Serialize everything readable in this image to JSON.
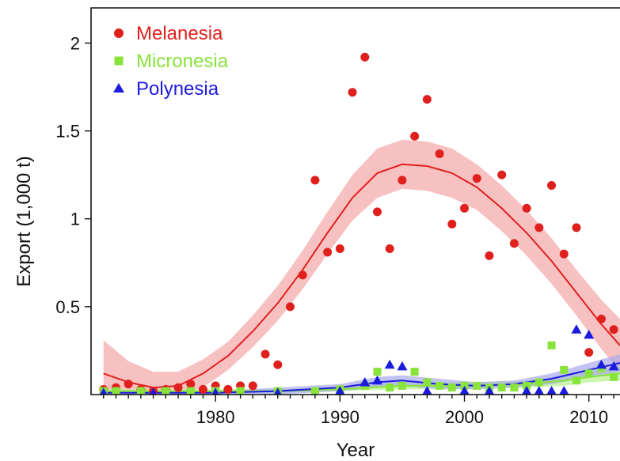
{
  "chart_data": {
    "type": "scatter",
    "title": "",
    "xlabel": "Year",
    "ylabel": "Export (1,000 t)",
    "xlim": [
      1970,
      2012.5
    ],
    "ylim": [
      0,
      2.2
    ],
    "x_ticks": [
      "1980",
      "1990",
      "2000",
      "2010"
    ],
    "y_ticks": [
      "0.5",
      "1",
      "1.5",
      "2"
    ],
    "grid": false,
    "legend_position": "top-left",
    "series": [
      {
        "name": "Melanesia",
        "marker": "circle",
        "color": "#e0201c",
        "band_color": "#f4a6a8",
        "points": [
          [
            1971,
            0.03
          ],
          [
            1972,
            0.04
          ],
          [
            1973,
            0.06
          ],
          [
            1974,
            0.03
          ],
          [
            1975,
            0.02
          ],
          [
            1976,
            0.03
          ],
          [
            1977,
            0.04
          ],
          [
            1978,
            0.06
          ],
          [
            1979,
            0.03
          ],
          [
            1980,
            0.05
          ],
          [
            1981,
            0.03
          ],
          [
            1982,
            0.05
          ],
          [
            1983,
            0.05
          ],
          [
            1984,
            0.23
          ],
          [
            1985,
            0.17
          ],
          [
            1986,
            0.5
          ],
          [
            1987,
            0.68
          ],
          [
            1988,
            1.22
          ],
          [
            1989,
            0.81
          ],
          [
            1990,
            0.83
          ],
          [
            1991,
            1.72
          ],
          [
            1992,
            1.92
          ],
          [
            1993,
            1.04
          ],
          [
            1994,
            0.83
          ],
          [
            1995,
            1.22
          ],
          [
            1996,
            1.47
          ],
          [
            1997,
            1.68
          ],
          [
            1998,
            1.37
          ],
          [
            1999,
            0.97
          ],
          [
            2000,
            1.06
          ],
          [
            2001,
            1.23
          ],
          [
            2002,
            0.79
          ],
          [
            2003,
            1.25
          ],
          [
            2004,
            0.86
          ],
          [
            2005,
            1.06
          ],
          [
            2006,
            0.95
          ],
          [
            2007,
            1.19
          ],
          [
            2008,
            0.8
          ],
          [
            2009,
            0.95
          ],
          [
            2010,
            0.24
          ],
          [
            2011,
            0.43
          ],
          [
            2012,
            0.37
          ]
        ],
        "fit": [
          [
            1971,
            0.12
          ],
          [
            1973,
            0.07
          ],
          [
            1975,
            0.04
          ],
          [
            1977,
            0.05
          ],
          [
            1979,
            0.12
          ],
          [
            1981,
            0.22
          ],
          [
            1983,
            0.36
          ],
          [
            1985,
            0.52
          ],
          [
            1987,
            0.71
          ],
          [
            1989,
            0.92
          ],
          [
            1991,
            1.12
          ],
          [
            1993,
            1.26
          ],
          [
            1995,
            1.31
          ],
          [
            1997,
            1.3
          ],
          [
            1999,
            1.26
          ],
          [
            2001,
            1.18
          ],
          [
            2003,
            1.06
          ],
          [
            2005,
            0.92
          ],
          [
            2007,
            0.76
          ],
          [
            2009,
            0.58
          ],
          [
            2011,
            0.4
          ],
          [
            2012.5,
            0.28
          ]
        ],
        "band_half_width": [
          0.19,
          0.12,
          0.09,
          0.08,
          0.08,
          0.08,
          0.09,
          0.1,
          0.11,
          0.12,
          0.13,
          0.14,
          0.14,
          0.14,
          0.14,
          0.13,
          0.13,
          0.13,
          0.13,
          0.13,
          0.14,
          0.15
        ]
      },
      {
        "name": "Micronesia",
        "marker": "square",
        "color": "#88e33a",
        "band_color": "#b7f08a",
        "points": [
          [
            1971,
            0.02
          ],
          [
            1972,
            0.02
          ],
          [
            1974,
            0.02
          ],
          [
            1976,
            0.02
          ],
          [
            1978,
            0.02
          ],
          [
            1980,
            0.02
          ],
          [
            1982,
            0.02
          ],
          [
            1985,
            0.02
          ],
          [
            1988,
            0.02
          ],
          [
            1990,
            0.03
          ],
          [
            1992,
            0.05
          ],
          [
            1993,
            0.13
          ],
          [
            1994,
            0.04
          ],
          [
            1995,
            0.05
          ],
          [
            1996,
            0.13
          ],
          [
            1997,
            0.07
          ],
          [
            1998,
            0.05
          ],
          [
            1999,
            0.04
          ],
          [
            2000,
            0.05
          ],
          [
            2001,
            0.05
          ],
          [
            2002,
            0.04
          ],
          [
            2003,
            0.04
          ],
          [
            2004,
            0.04
          ],
          [
            2005,
            0.05
          ],
          [
            2006,
            0.07
          ],
          [
            2007,
            0.28
          ],
          [
            2008,
            0.14
          ],
          [
            2009,
            0.08
          ],
          [
            2010,
            0.12
          ],
          [
            2011,
            0.15
          ],
          [
            2012,
            0.1
          ]
        ],
        "fit": [
          [
            1971,
            0.02
          ],
          [
            1975,
            0.02
          ],
          [
            1980,
            0.02
          ],
          [
            1985,
            0.02
          ],
          [
            1990,
            0.03
          ],
          [
            1995,
            0.05
          ],
          [
            2000,
            0.05
          ],
          [
            2005,
            0.06
          ],
          [
            2008,
            0.08
          ],
          [
            2010,
            0.1
          ],
          [
            2012.5,
            0.12
          ]
        ],
        "band_half_width": [
          0.01,
          0.01,
          0.01,
          0.01,
          0.01,
          0.02,
          0.02,
          0.02,
          0.03,
          0.03,
          0.04
        ]
      },
      {
        "name": "Polynesia",
        "marker": "triangle",
        "color": "#1b1be0",
        "band_color": "#aaaaee",
        "points": [
          [
            1971,
            0.01
          ],
          [
            1975,
            0.01
          ],
          [
            1980,
            0.01
          ],
          [
            1985,
            0.01
          ],
          [
            1990,
            0.02
          ],
          [
            1992,
            0.07
          ],
          [
            1993,
            0.08
          ],
          [
            1994,
            0.17
          ],
          [
            1995,
            0.16
          ],
          [
            1997,
            0.02
          ],
          [
            2000,
            0.02
          ],
          [
            2002,
            0.02
          ],
          [
            2005,
            0.02
          ],
          [
            2006,
            0.02
          ],
          [
            2007,
            0.02
          ],
          [
            2008,
            0.02
          ],
          [
            2009,
            0.37
          ],
          [
            2010,
            0.34
          ],
          [
            2011,
            0.17
          ],
          [
            2012,
            0.16
          ]
        ],
        "fit": [
          [
            1971,
            0.01
          ],
          [
            1975,
            0.01
          ],
          [
            1980,
            0.01
          ],
          [
            1985,
            0.02
          ],
          [
            1990,
            0.04
          ],
          [
            1993,
            0.07
          ],
          [
            1995,
            0.08
          ],
          [
            1998,
            0.06
          ],
          [
            2001,
            0.05
          ],
          [
            2004,
            0.06
          ],
          [
            2007,
            0.09
          ],
          [
            2010,
            0.14
          ],
          [
            2012.5,
            0.18
          ]
        ],
        "band_half_width": [
          0.01,
          0.01,
          0.01,
          0.02,
          0.02,
          0.03,
          0.03,
          0.03,
          0.02,
          0.02,
          0.03,
          0.04,
          0.05
        ]
      }
    ]
  }
}
